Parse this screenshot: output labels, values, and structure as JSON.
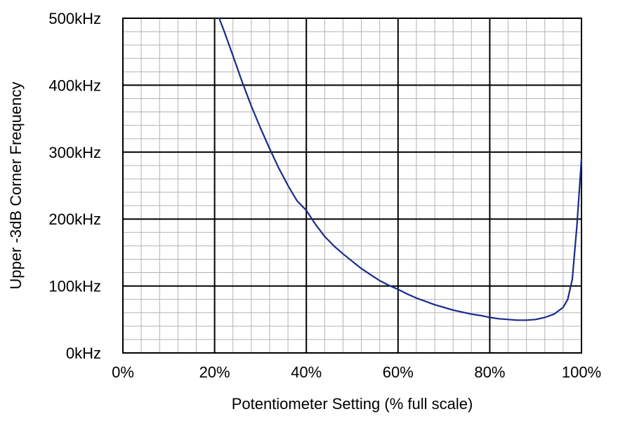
{
  "chart_data": {
    "type": "line",
    "title": "",
    "xlabel": "Potentiometer Setting (% full scale)",
    "ylabel": "Upper -3dB Corner Frequency",
    "xlim": [
      0,
      100
    ],
    "ylim": [
      0,
      500
    ],
    "x_ticks": [
      "0%",
      "20%",
      "40%",
      "60%",
      "80%",
      "100%"
    ],
    "x_tick_values": [
      0,
      20,
      40,
      60,
      80,
      100
    ],
    "y_ticks": [
      "0kHz",
      "100kHz",
      "200kHz",
      "300kHz",
      "400kHz",
      "500kHz"
    ],
    "y_tick_values": [
      0,
      100,
      200,
      300,
      400,
      500
    ],
    "grid": true,
    "minor_grid": true,
    "colors": {
      "series": "#1b2a8a",
      "major_grid": "#000000",
      "minor_grid": "#b3b3b3"
    },
    "series": [
      {
        "x": [
          21,
          22,
          24,
          26,
          28,
          30,
          32,
          34,
          36,
          38,
          40,
          42,
          44,
          46,
          48,
          50,
          52,
          54,
          56,
          58,
          60,
          62,
          64,
          66,
          68,
          70,
          72,
          74,
          76,
          78,
          80,
          82,
          84,
          86,
          88,
          90,
          92,
          94,
          96,
          97,
          98,
          99,
          100
        ],
        "values": [
          500,
          482,
          444,
          405,
          369,
          336,
          305,
          276,
          250,
          227,
          213,
          192,
          174,
          160,
          148,
          137,
          126,
          117,
          108,
          101,
          95,
          88,
          82,
          77,
          72,
          68,
          64,
          61,
          58,
          56,
          53,
          51,
          50,
          49,
          49,
          50,
          53,
          58,
          68,
          80,
          110,
          190,
          290
        ]
      }
    ]
  }
}
